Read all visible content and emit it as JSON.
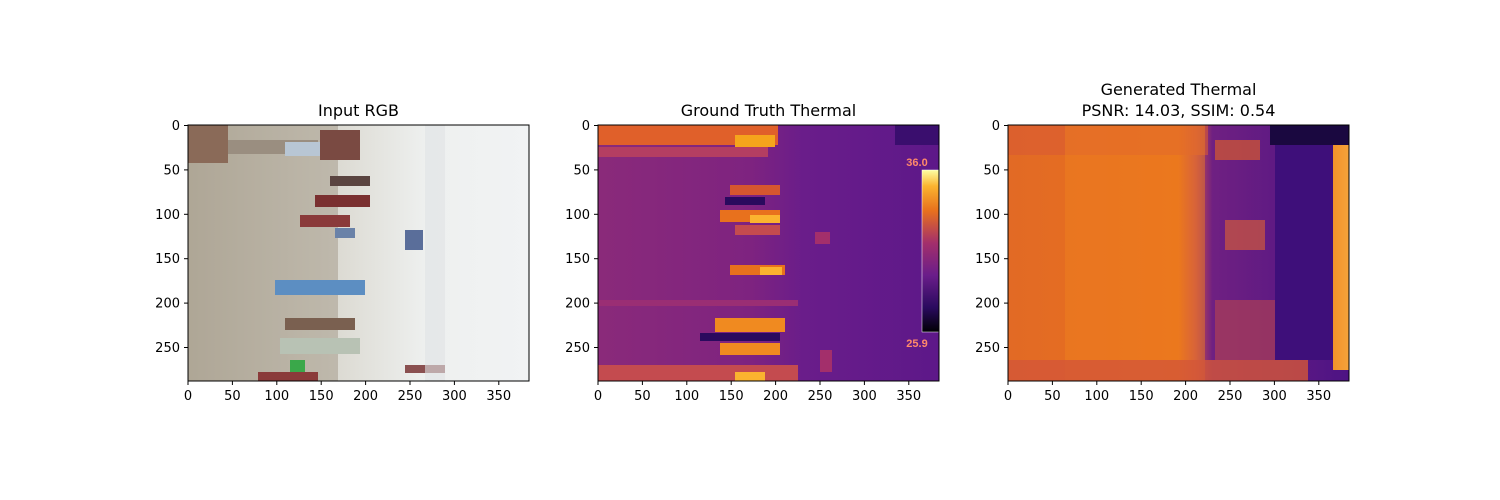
{
  "chart_data": [
    {
      "type": "image",
      "title": "Input RGB",
      "xlim": [
        0,
        384
      ],
      "ylim": [
        288,
        0
      ],
      "xticks": [
        0,
        50,
        100,
        150,
        200,
        250,
        300,
        350
      ],
      "yticks": [
        0,
        50,
        100,
        150,
        200,
        250
      ],
      "colormap": "rgb photo"
    },
    {
      "type": "image",
      "title": "Ground Truth Thermal",
      "xlim": [
        0,
        384
      ],
      "ylim": [
        288,
        0
      ],
      "xticks": [
        0,
        50,
        100,
        150,
        200,
        250,
        300,
        350
      ],
      "yticks": [
        0,
        50,
        100,
        150,
        200,
        250
      ],
      "colormap": "inferno",
      "embedded_colorbar": {
        "max_label": "36.0",
        "min_label": "25.9"
      }
    },
    {
      "type": "image",
      "title": "Generated Thermal",
      "subtitle": "PSNR: 14.03, SSIM: 0.54",
      "metrics": {
        "PSNR": 14.03,
        "SSIM": 0.54
      },
      "xlim": [
        0,
        384
      ],
      "ylim": [
        288,
        0
      ],
      "xticks": [
        0,
        50,
        100,
        150,
        200,
        250,
        300,
        350
      ],
      "yticks": [
        0,
        50,
        100,
        150,
        200,
        250
      ],
      "colormap": "inferno"
    }
  ],
  "colors": {
    "inferno_dark": "#2a0a5e",
    "inferno_purple": "#6a1d8a",
    "inferno_magenta": "#a32f6b",
    "inferno_orange": "#e8711d",
    "inferno_yellow": "#fbd34d",
    "cbar_text": "#ff8a6a"
  }
}
